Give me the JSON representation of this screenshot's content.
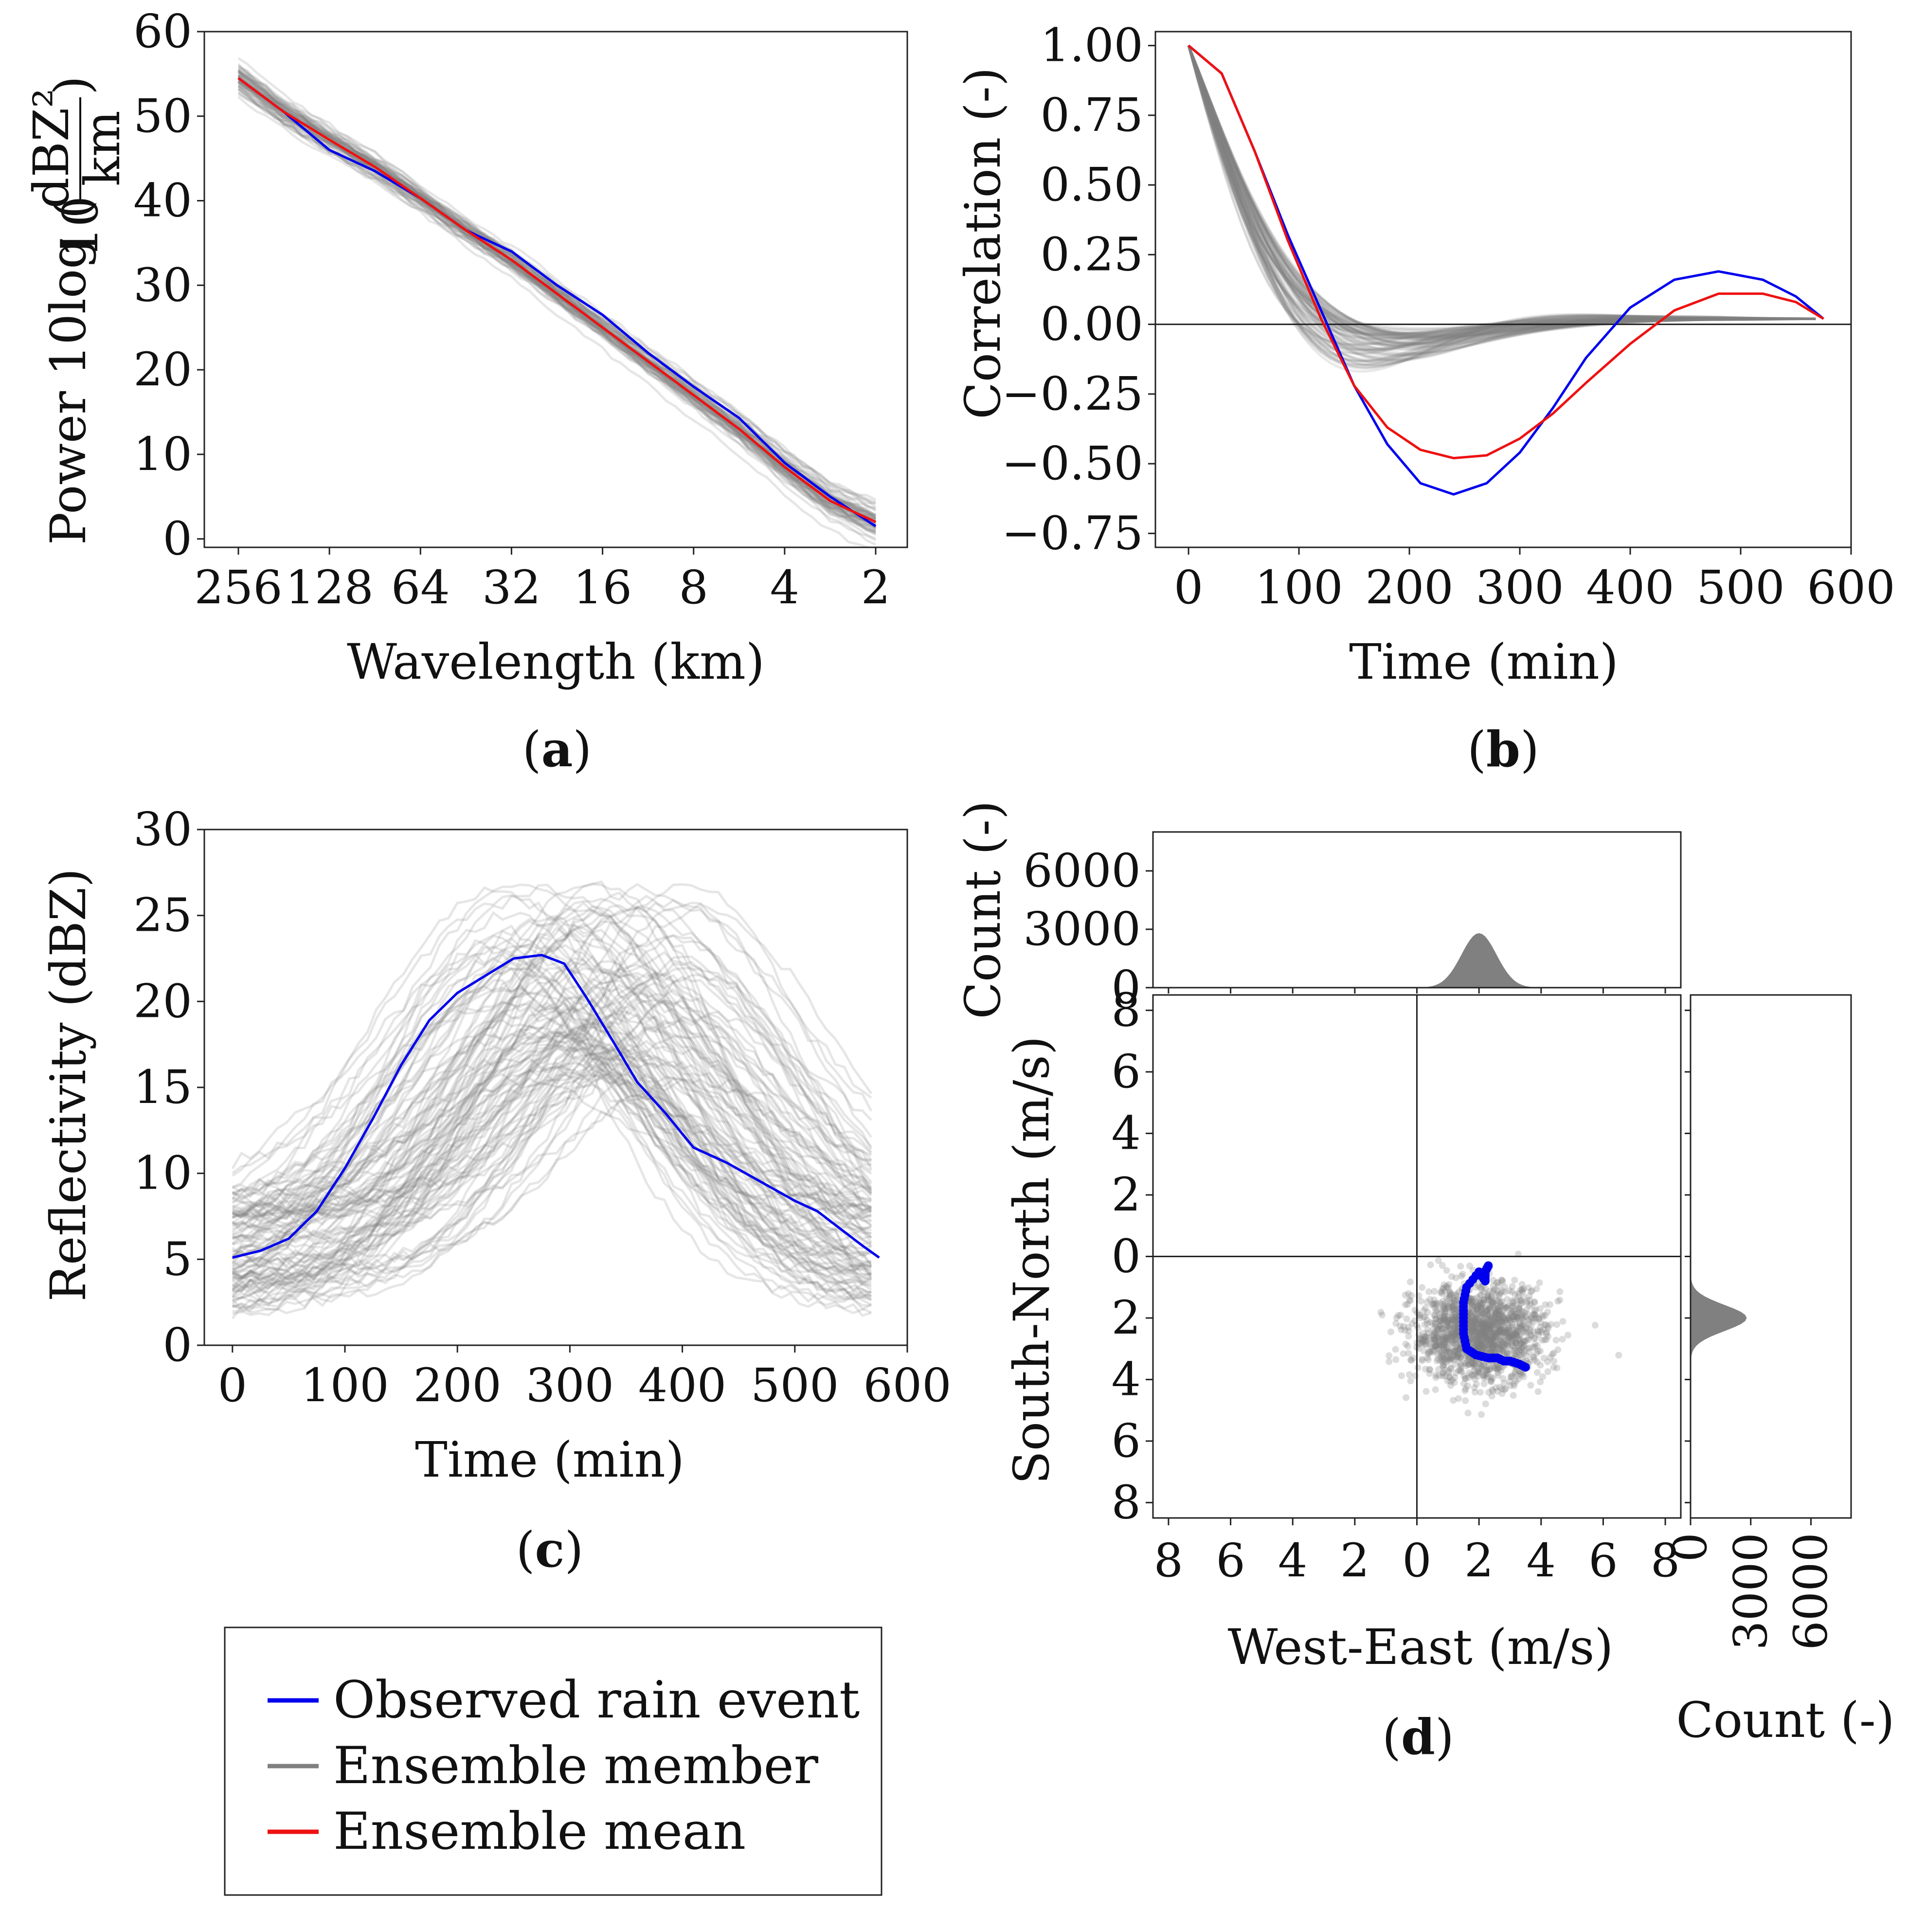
{
  "colors": {
    "observed": "#0000ee",
    "member": "#808080",
    "mean": "#ee1111"
  },
  "legend": {
    "items": [
      {
        "label": "Observed rain event",
        "color": "#0000ee"
      },
      {
        "label": "Ensemble member",
        "color": "#808080"
      },
      {
        "label": "Ensemble mean",
        "color": "#ee1111"
      }
    ]
  },
  "chart_data": [
    {
      "id": "a",
      "panel_label": "a",
      "type": "line",
      "xlabel": "Wavelength (km)",
      "ylabel_prefix": "Power 10log",
      "ylabel_sub": "10",
      "ylabel_num": "dBZ²",
      "ylabel_den": "km",
      "xticks": [
        "256",
        "128",
        "64",
        "32",
        "16",
        "8",
        "4",
        "2"
      ],
      "yticks": [
        "0",
        "10",
        "20",
        "30",
        "40",
        "50",
        "60"
      ],
      "ylim": [
        -1,
        60
      ],
      "series": [
        {
          "name": "Observed rain event",
          "x": [
            0,
            0.5,
            1,
            1.5,
            2,
            2.5,
            3,
            3.5,
            4,
            4.5,
            5,
            5.5,
            6,
            6.5,
            7
          ],
          "values": [
            54.5,
            50.5,
            46,
            43.5,
            40.3,
            36.5,
            34,
            30,
            26.5,
            22,
            18,
            14.3,
            9,
            5,
            1.5
          ]
        },
        {
          "name": "Ensemble mean",
          "x": [
            0,
            0.5,
            1,
            1.5,
            2,
            2.5,
            3,
            3.5,
            4,
            4.5,
            5,
            5.5,
            6,
            6.5,
            7
          ],
          "values": [
            54.5,
            50.5,
            47.2,
            44,
            40.3,
            36.5,
            33,
            29,
            25,
            21,
            17,
            13,
            8.5,
            4.5,
            2
          ]
        }
      ],
      "ensemble_spread": 1.5
    },
    {
      "id": "b",
      "panel_label": "b",
      "type": "line",
      "xlabel": "Time (min)",
      "ylabel": "Correlation (-)",
      "xticks": [
        "0",
        "100",
        "200",
        "300",
        "400",
        "500",
        "600"
      ],
      "yticks": [
        "1.00",
        "0.75",
        "0.50",
        "0.25",
        "0.00",
        "−0.25",
        "−0.50",
        "−0.75"
      ],
      "xlim": [
        -30,
        600
      ],
      "ylim": [
        -0.8,
        1.05
      ],
      "series": [
        {
          "name": "Observed rain event",
          "x": [
            0,
            30,
            60,
            90,
            120,
            150,
            180,
            210,
            240,
            270,
            300,
            330,
            360,
            400,
            440,
            480,
            520,
            550,
            575
          ],
          "values": [
            1.0,
            0.9,
            0.62,
            0.32,
            0.05,
            -0.22,
            -0.43,
            -0.57,
            -0.61,
            -0.57,
            -0.46,
            -0.3,
            -0.12,
            0.06,
            0.16,
            0.19,
            0.16,
            0.1,
            0.02
          ]
        },
        {
          "name": "Ensemble mean",
          "x": [
            0,
            30,
            60,
            90,
            120,
            150,
            180,
            210,
            240,
            270,
            300,
            330,
            360,
            400,
            440,
            480,
            520,
            550,
            575
          ],
          "values": [
            1.0,
            0.9,
            0.62,
            0.3,
            0.02,
            -0.22,
            -0.37,
            -0.45,
            -0.48,
            -0.47,
            -0.41,
            -0.32,
            -0.21,
            -0.07,
            0.05,
            0.11,
            0.11,
            0.08,
            0.02
          ]
        }
      ],
      "hline": 0
    },
    {
      "id": "c",
      "panel_label": "c",
      "type": "line",
      "xlabel": "Time (min)",
      "ylabel": "Reflectivity (dBZ)",
      "xticks": [
        "0",
        "100",
        "200",
        "300",
        "400",
        "500",
        "600"
      ],
      "yticks": [
        "0",
        "5",
        "10",
        "15",
        "20",
        "25",
        "30"
      ],
      "xlim": [
        -25,
        600
      ],
      "ylim": [
        0,
        30
      ],
      "series": [
        {
          "name": "Observed rain event",
          "x": [
            0,
            25,
            50,
            75,
            100,
            125,
            150,
            175,
            200,
            225,
            250,
            275,
            295,
            315,
            340,
            360,
            385,
            410,
            440,
            470,
            500,
            520,
            540,
            560,
            575
          ],
          "values": [
            5.1,
            5.5,
            6.2,
            7.8,
            10.3,
            13.2,
            16.3,
            18.9,
            20.5,
            21.5,
            22.5,
            22.7,
            22.2,
            20.2,
            17.5,
            15.3,
            13.5,
            11.5,
            10.6,
            9.5,
            8.4,
            7.8,
            6.8,
            5.8,
            5.1
          ]
        }
      ],
      "ensemble_peak_range": [
        15,
        27
      ]
    },
    {
      "id": "d",
      "panel_label": "d",
      "type": "scatter",
      "xlabel": "West-East (m/s)",
      "ylabel": "South-North (m/s)",
      "xticks": [
        "8",
        "6",
        "4",
        "2",
        "0",
        "2",
        "4",
        "6",
        "8"
      ],
      "yticks": [
        "8",
        "6",
        "4",
        "2",
        "0",
        "2",
        "4",
        "6",
        "8"
      ],
      "xlim": [
        -8.5,
        8.5
      ],
      "ylim": [
        -8.5,
        8.5
      ],
      "top_hist": {
        "ylabel": "Count (-)",
        "yticks": [
          "0",
          "3000",
          "6000"
        ],
        "peak": 2800,
        "center": 2.0
      },
      "right_hist": {
        "xlabel": "Count (-)",
        "xticks": [
          "0",
          "3000",
          "6000"
        ],
        "peak": 2800,
        "center": -2.0
      },
      "ensemble_cloud": {
        "center_x": 2.0,
        "center_y": -2.5
      },
      "observed_track": {
        "x": [
          2.3,
          2.2,
          2.2,
          2.0,
          1.6,
          1.5,
          1.5,
          1.5,
          1.6,
          1.9,
          2.3,
          2.6,
          2.8,
          3.0,
          3.3,
          3.5
        ],
        "y": [
          -0.3,
          -0.5,
          -0.8,
          -0.5,
          -1.0,
          -1.5,
          -2.0,
          -2.5,
          -3.0,
          -3.2,
          -3.3,
          -3.3,
          -3.4,
          -3.4,
          -3.5,
          -3.6
        ]
      }
    }
  ]
}
